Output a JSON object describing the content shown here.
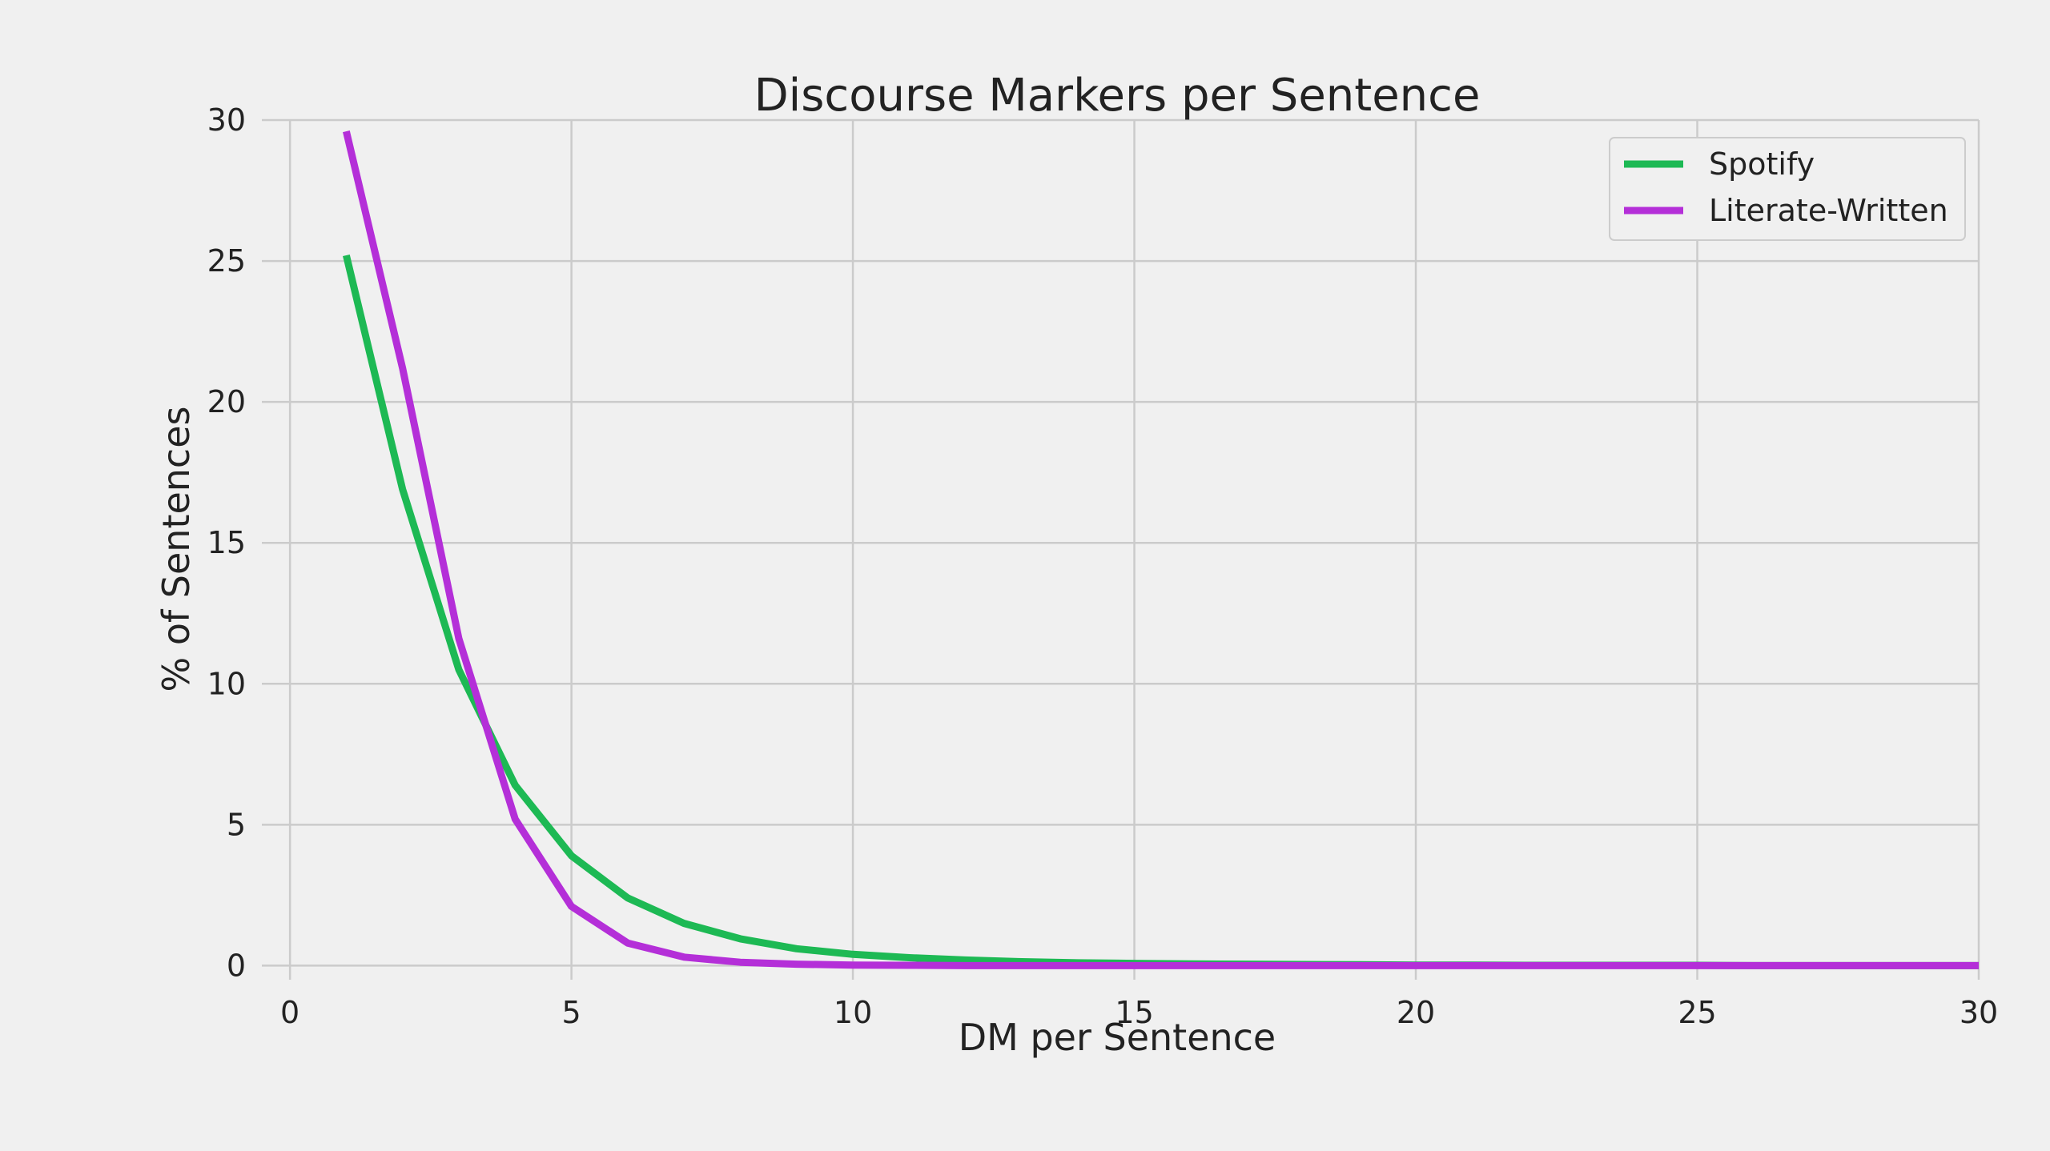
{
  "chart_data": {
    "type": "line",
    "title": "Discourse Markers per Sentence",
    "xlabel": "DM per Sentence",
    "ylabel": "% of Sentences",
    "xlim": [
      -0.5,
      30
    ],
    "ylim": [
      -0.5,
      30
    ],
    "xticks": [
      0,
      5,
      10,
      15,
      20,
      25,
      30
    ],
    "yticks": [
      0,
      5,
      10,
      15,
      20,
      25,
      30
    ],
    "grid": true,
    "legend_position": "top-right",
    "x": [
      1,
      2,
      3,
      4,
      5,
      6,
      7,
      8,
      9,
      10,
      11,
      12,
      13,
      14,
      15,
      16,
      17,
      18,
      19,
      20,
      21,
      22,
      23,
      24,
      25,
      26,
      27,
      28,
      29,
      30
    ],
    "series": [
      {
        "name": "Spotify",
        "color": "#1db954",
        "values": [
          25.2,
          16.9,
          10.5,
          6.4,
          3.9,
          2.4,
          1.5,
          0.95,
          0.6,
          0.4,
          0.28,
          0.2,
          0.14,
          0.1,
          0.08,
          0.06,
          0.05,
          0.04,
          0.03,
          0.02,
          0.02,
          0.01,
          0.01,
          0.01,
          0.01,
          0.0,
          0.0,
          0.0,
          0.0,
          0.0
        ]
      },
      {
        "name": "Literate-Written",
        "color": "#b42fd8",
        "values": [
          29.6,
          21.2,
          11.6,
          5.2,
          2.1,
          0.8,
          0.3,
          0.12,
          0.05,
          0.02,
          0.01,
          0.0,
          0.0,
          0.0,
          0.0,
          0.0,
          0.0,
          0.0,
          0.0,
          0.0,
          0.0,
          0.0,
          0.0,
          0.0,
          0.0,
          0.0,
          0.0,
          0.0,
          0.0,
          0.0
        ]
      }
    ]
  }
}
